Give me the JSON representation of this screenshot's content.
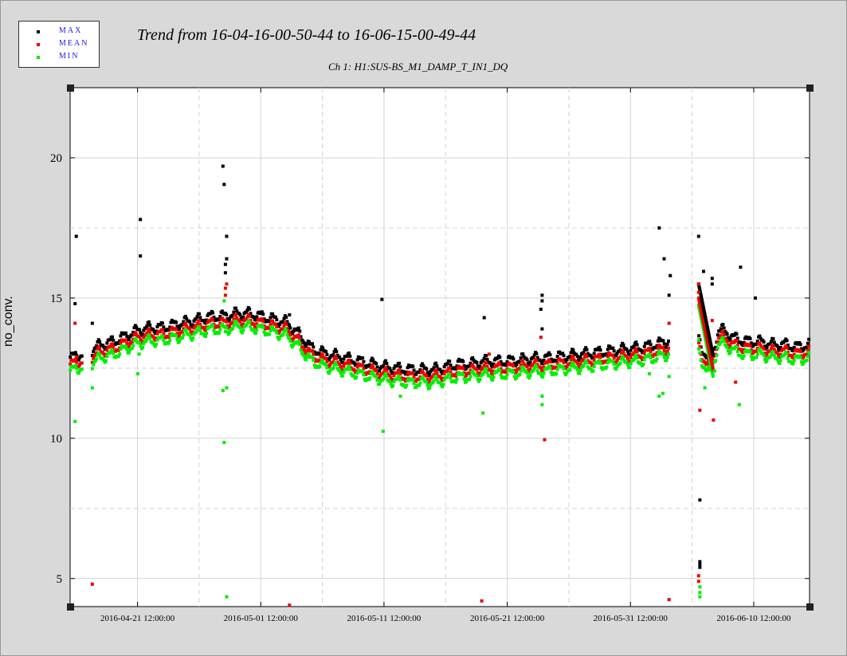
{
  "title": "Trend from 16-04-16-00-50-44 to 16-06-15-00-49-44",
  "subtitle": "Ch 1: H1:SUS-BS_M1_DAMP_T_IN1_DQ",
  "legend": [
    {
      "label": "MAX",
      "color": "#000000"
    },
    {
      "label": "MEAN",
      "color": "#ee0000"
    },
    {
      "label": "MIN",
      "color": "#00ee00"
    }
  ],
  "chart_data": {
    "type": "scatter",
    "title": "Trend from 16-04-16-00-50-44 to 16-06-15-00-49-44",
    "subtitle": "Ch 1: H1:SUS-BS_M1_DAMP_T_IN1_DQ",
    "xlabel": "",
    "ylabel": "no_conv.",
    "x_unit": "days since 2016-04-16 00:50:44",
    "xlim": [
      0,
      60
    ],
    "ylim": [
      4,
      22.5
    ],
    "y_ticks": [
      5,
      10,
      15,
      20
    ],
    "x_ticks": [
      {
        "label": "2016-04-21 12:00:00",
        "value": 5.47
      },
      {
        "label": "2016-05-01 12:00:00",
        "value": 15.47
      },
      {
        "label": "2016-05-11 12:00:00",
        "value": 25.47
      },
      {
        "label": "2016-05-21 12:00:00",
        "value": 35.47
      },
      {
        "label": "2016-05-31 12:00:00",
        "value": 45.47
      },
      {
        "label": "2016-06-10 12:00:00",
        "value": 55.47
      }
    ],
    "grid": true,
    "legend_position": "top-left",
    "baseline": {
      "x": [
        0,
        0.5,
        1.8,
        2.5,
        3.5,
        4.5,
        5.5,
        6.5,
        7.5,
        8.5,
        9.5,
        10.5,
        11.5,
        12.5,
        13.5,
        14.5,
        15.5,
        16.5,
        17.5,
        18.5,
        19.5,
        20.5,
        21.5,
        22.5,
        23.5,
        24.5,
        25.5,
        26.5,
        27.5,
        28.5,
        29.5,
        30.5,
        31.5,
        32.5,
        33.5,
        34.5,
        35.5,
        36.5,
        37.5,
        38.5,
        39.5,
        40.5,
        41.5,
        42.5,
        43.5,
        44.5,
        45.5,
        46.5,
        47.5,
        48.5,
        50.0,
        51.2,
        52.0,
        52.6,
        53.0,
        54.0,
        55.0,
        56.0,
        57.0,
        58.0,
        59.0,
        60
      ],
      "y": [
        12.6,
        12.7,
        12.9,
        13.1,
        13.2,
        13.4,
        13.6,
        13.7,
        13.7,
        13.8,
        13.9,
        14.0,
        14.1,
        14.1,
        14.2,
        14.2,
        14.1,
        14.0,
        13.9,
        13.5,
        13.0,
        12.8,
        12.7,
        12.6,
        12.5,
        12.4,
        12.3,
        12.25,
        12.2,
        12.2,
        12.2,
        12.3,
        12.4,
        12.4,
        12.5,
        12.5,
        12.5,
        12.55,
        12.6,
        12.6,
        12.65,
        12.7,
        12.75,
        12.8,
        12.85,
        12.9,
        12.95,
        13.0,
        13.1,
        13.2,
        14.7,
        13.0,
        12.5,
        13.6,
        13.6,
        13.3,
        13.2,
        13.2,
        13.1,
        13.1,
        13.0,
        13.1
      ]
    },
    "gaps": [
      [
        1.0,
        1.8
      ],
      [
        48.6,
        51.0
      ]
    ],
    "series": [
      {
        "name": "MAX",
        "color": "#000000",
        "offset": 0.25,
        "points": [
          [
            0.5,
            17.2
          ],
          [
            0.4,
            14.8
          ],
          [
            1.8,
            14.1
          ],
          [
            5.7,
            17.8
          ],
          [
            5.7,
            16.5
          ],
          [
            12.4,
            19.7
          ],
          [
            12.5,
            19.05
          ],
          [
            12.7,
            17.2
          ],
          [
            12.7,
            16.4
          ],
          [
            12.6,
            16.2
          ],
          [
            12.6,
            15.9
          ],
          [
            17.8,
            14.4
          ],
          [
            25.3,
            14.95
          ],
          [
            33.6,
            14.3
          ],
          [
            38.3,
            15.1
          ],
          [
            38.3,
            14.9
          ],
          [
            38.2,
            14.6
          ],
          [
            38.3,
            13.9
          ],
          [
            47.8,
            17.5
          ],
          [
            48.2,
            16.4
          ],
          [
            48.6,
            15.1
          ],
          [
            48.7,
            15.8
          ],
          [
            51.0,
            17.2
          ],
          [
            51.4,
            15.95
          ],
          [
            52.1,
            15.7
          ],
          [
            52.1,
            15.5
          ],
          [
            54.4,
            16.1
          ],
          [
            55.6,
            15.0
          ],
          [
            51.1,
            7.8
          ],
          [
            51.1,
            5.6
          ],
          [
            51.1,
            5.5
          ],
          [
            51.1,
            5.4
          ]
        ]
      },
      {
        "name": "MEAN",
        "color": "#ee0000",
        "offset": 0.0,
        "points": [
          [
            0.4,
            14.1
          ],
          [
            0.5,
            12.9
          ],
          [
            1.8,
            4.8
          ],
          [
            12.6,
            15.35
          ],
          [
            12.7,
            15.5
          ],
          [
            12.6,
            15.1
          ],
          [
            17.8,
            4.05
          ],
          [
            33.4,
            4.2
          ],
          [
            38.2,
            13.6
          ],
          [
            38.5,
            9.95
          ],
          [
            48.6,
            14.1
          ],
          [
            48.6,
            4.25
          ],
          [
            51.0,
            15.5
          ],
          [
            51.0,
            15.2
          ],
          [
            51.1,
            11.0
          ],
          [
            52.2,
            10.65
          ],
          [
            52.1,
            14.2
          ],
          [
            51.0,
            5.1
          ],
          [
            51.0,
            4.9
          ],
          [
            54.0,
            12.0
          ],
          [
            34.0,
            13.0
          ]
        ]
      },
      {
        "name": "MIN",
        "color": "#00ee00",
        "offset": -0.22,
        "points": [
          [
            0.4,
            10.6
          ],
          [
            1.8,
            11.8
          ],
          [
            5.5,
            12.3
          ],
          [
            5.6,
            13.0
          ],
          [
            12.5,
            14.9
          ],
          [
            12.4,
            11.7
          ],
          [
            12.7,
            11.8
          ],
          [
            12.5,
            9.85
          ],
          [
            12.7,
            4.35
          ],
          [
            12.6,
            13.8
          ],
          [
            25.4,
            10.25
          ],
          [
            26.8,
            11.5
          ],
          [
            33.5,
            10.9
          ],
          [
            38.3,
            11.2
          ],
          [
            38.3,
            11.5
          ],
          [
            47.8,
            11.5
          ],
          [
            48.1,
            11.6
          ],
          [
            47.0,
            12.3
          ],
          [
            48.6,
            12.2
          ],
          [
            51.5,
            11.8
          ],
          [
            51.0,
            13.5
          ],
          [
            51.1,
            4.7
          ],
          [
            51.1,
            4.5
          ],
          [
            51.1,
            4.35
          ],
          [
            54.3,
            11.2
          ],
          [
            52.3,
            12.4
          ]
        ]
      }
    ]
  }
}
